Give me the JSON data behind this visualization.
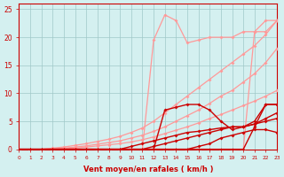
{
  "xlim": [
    0,
    23
  ],
  "ylim": [
    0,
    26
  ],
  "yticks": [
    0,
    5,
    10,
    15,
    20,
    25
  ],
  "xticks": [
    0,
    1,
    2,
    3,
    4,
    5,
    6,
    7,
    8,
    9,
    10,
    11,
    12,
    13,
    14,
    15,
    16,
    17,
    18,
    19,
    20,
    21,
    22,
    23
  ],
  "xlabel": "Vent moyen/en rafales ( km/h )",
  "bg_color": "#d4f0f0",
  "grid_color": "#a0c8c8",
  "lines": [
    {
      "x": [
        0,
        1,
        2,
        3,
        4,
        5,
        6,
        7,
        8,
        9,
        10,
        11,
        12,
        13,
        14,
        15,
        16,
        17,
        18,
        19,
        20,
        21,
        22,
        23
      ],
      "y": [
        0,
        0,
        0,
        0,
        0,
        0,
        0,
        0,
        0,
        0,
        0,
        0,
        19.5,
        24,
        23,
        19,
        19.5,
        20,
        20,
        20,
        21,
        21,
        23,
        23
      ],
      "color": "#ff9999",
      "lw": 0.9,
      "ms": 2.0
    },
    {
      "x": [
        0,
        1,
        2,
        3,
        4,
        5,
        6,
        7,
        8,
        9,
        10,
        11,
        12,
        13,
        14,
        15,
        16,
        17,
        18,
        19,
        20,
        21,
        22,
        23
      ],
      "y": [
        0,
        0,
        0,
        0,
        0,
        0,
        0,
        0,
        0,
        0,
        0,
        0,
        0,
        0,
        0,
        0,
        0,
        0,
        0,
        0,
        0,
        21,
        21,
        23
      ],
      "color": "#ff9999",
      "lw": 0.9,
      "ms": 2.0
    },
    {
      "x": [
        0,
        1,
        2,
        3,
        4,
        5,
        6,
        7,
        8,
        9,
        10,
        11,
        12,
        13,
        14,
        15,
        16,
        17,
        18,
        19,
        20,
        21,
        22,
        23
      ],
      "y": [
        0,
        0,
        0,
        0.2,
        0.4,
        0.7,
        1.0,
        1.4,
        1.8,
        2.3,
        3.0,
        3.8,
        5.0,
        6.5,
        8.0,
        9.5,
        11.0,
        12.5,
        14.0,
        15.5,
        17.0,
        18.5,
        20.5,
        23
      ],
      "color": "#ff9999",
      "lw": 0.9,
      "ms": 2.0
    },
    {
      "x": [
        0,
        1,
        2,
        3,
        4,
        5,
        6,
        7,
        8,
        9,
        10,
        11,
        12,
        13,
        14,
        15,
        16,
        17,
        18,
        19,
        20,
        21,
        22,
        23
      ],
      "y": [
        0,
        0,
        0,
        0.1,
        0.2,
        0.4,
        0.6,
        0.9,
        1.2,
        1.5,
        2.0,
        2.5,
        3.2,
        4.0,
        5.0,
        6.0,
        7.0,
        8.2,
        9.5,
        10.5,
        12.0,
        13.5,
        15.5,
        18.0
      ],
      "color": "#ff9999",
      "lw": 0.9,
      "ms": 2.0
    },
    {
      "x": [
        0,
        1,
        2,
        3,
        4,
        5,
        6,
        7,
        8,
        9,
        10,
        11,
        12,
        13,
        14,
        15,
        16,
        17,
        18,
        19,
        20,
        21,
        22,
        23
      ],
      "y": [
        0,
        0,
        0,
        0,
        0.1,
        0.2,
        0.4,
        0.6,
        0.8,
        1.0,
        1.3,
        1.7,
        2.2,
        2.8,
        3.4,
        4.0,
        4.7,
        5.5,
        6.2,
        7.0,
        7.8,
        8.6,
        9.5,
        10.5
      ],
      "color": "#ff9999",
      "lw": 0.9,
      "ms": 2.0
    },
    {
      "x": [
        0,
        1,
        2,
        3,
        4,
        5,
        6,
        7,
        8,
        9,
        10,
        11,
        12,
        13,
        14,
        15,
        16,
        17,
        18,
        19,
        20,
        21,
        22,
        23
      ],
      "y": [
        0,
        0,
        0,
        0,
        0,
        0,
        0,
        0,
        0,
        0,
        0,
        0,
        0,
        7,
        7.5,
        8,
        8,
        7,
        5,
        3.5,
        4,
        5,
        8,
        8
      ],
      "color": "#cc0000",
      "lw": 1.0,
      "ms": 2.0
    },
    {
      "x": [
        0,
        1,
        2,
        3,
        4,
        5,
        6,
        7,
        8,
        9,
        10,
        11,
        12,
        13,
        14,
        15,
        16,
        17,
        18,
        19,
        20,
        21,
        22,
        23
      ],
      "y": [
        0,
        0,
        0,
        0,
        0,
        0,
        0,
        0,
        0,
        0,
        0,
        0,
        0,
        0,
        0,
        0,
        0,
        0,
        0,
        0,
        0,
        4,
        8,
        8
      ],
      "color": "#cc0000",
      "lw": 1.0,
      "ms": 2.0
    },
    {
      "x": [
        0,
        1,
        2,
        3,
        4,
        5,
        6,
        7,
        8,
        9,
        10,
        11,
        12,
        13,
        14,
        15,
        16,
        17,
        18,
        19,
        20,
        21,
        22,
        23
      ],
      "y": [
        0,
        0,
        0,
        0,
        0,
        0,
        0,
        0,
        0,
        0,
        0,
        0,
        0.5,
        1.0,
        1.5,
        2.0,
        2.5,
        3.0,
        3.5,
        4.0,
        4.0,
        4.5,
        5.5,
        6.5
      ],
      "color": "#cc0000",
      "lw": 1.0,
      "ms": 2.0
    },
    {
      "x": [
        0,
        1,
        2,
        3,
        4,
        5,
        6,
        7,
        8,
        9,
        10,
        11,
        12,
        13,
        14,
        15,
        16,
        17,
        18,
        19,
        20,
        21,
        22,
        23
      ],
      "y": [
        0,
        0,
        0,
        0,
        0,
        0,
        0,
        0,
        0,
        0,
        0.5,
        1.0,
        1.5,
        2.0,
        2.5,
        3.0,
        3.2,
        3.5,
        3.8,
        4.0,
        4.0,
        4.5,
        5.0,
        5.5
      ],
      "color": "#cc0000",
      "lw": 1.0,
      "ms": 2.0
    },
    {
      "x": [
        0,
        1,
        2,
        3,
        4,
        5,
        6,
        7,
        8,
        9,
        10,
        11,
        12,
        13,
        14,
        15,
        16,
        17,
        18,
        19,
        20,
        21,
        22,
        23
      ],
      "y": [
        0,
        0,
        0,
        0,
        0,
        0,
        0,
        0,
        0,
        0,
        0,
        0,
        0,
        0,
        0,
        0,
        0.5,
        1.0,
        2.0,
        2.5,
        3.0,
        3.5,
        3.5,
        3.0
      ],
      "color": "#cc0000",
      "lw": 1.0,
      "ms": 2.0
    }
  ],
  "axis_color": "#cc0000",
  "tick_color": "#cc0000",
  "label_color": "#cc0000"
}
